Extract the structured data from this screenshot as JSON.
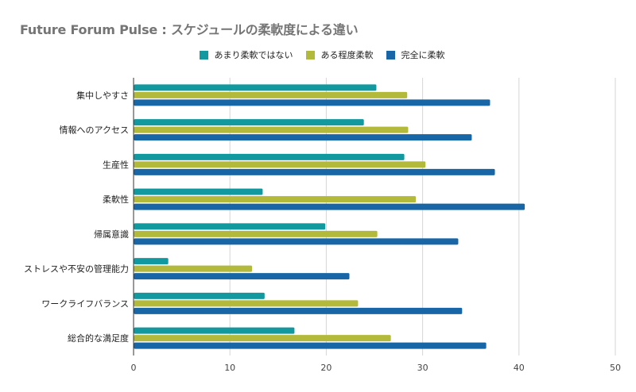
{
  "chart_data": {
    "type": "bar",
    "orientation": "horizontal",
    "title": "Future Forum Pulse : スケジュールの柔軟度による違い",
    "xlabel": "",
    "ylabel": "",
    "xlim": [
      0,
      50
    ],
    "x_ticks": [
      "0",
      "10",
      "20",
      "30",
      "40",
      "50"
    ],
    "grid": true,
    "legend_position": "top-center",
    "categories": [
      "集中しやすさ",
      "情報へのアクセス",
      "生産性",
      "柔軟性",
      "帰属意識",
      "ストレスや不安の管理能力",
      "ワークライフバランス",
      "総合的な満足度"
    ],
    "series": [
      {
        "name": "あまり柔軟ではない",
        "color": "#12999f",
        "values": [
          25.2,
          23.9,
          28.1,
          13.4,
          19.9,
          3.6,
          13.6,
          16.7
        ]
      },
      {
        "name": "ある程度柔軟",
        "color": "#b3b93a",
        "values": [
          28.4,
          28.5,
          30.3,
          29.3,
          25.3,
          12.3,
          23.3,
          26.7
        ]
      },
      {
        "name": "完全に柔軟",
        "color": "#1866a6",
        "values": [
          37.0,
          35.1,
          37.5,
          40.6,
          33.7,
          22.4,
          34.1,
          36.6
        ]
      }
    ]
  }
}
